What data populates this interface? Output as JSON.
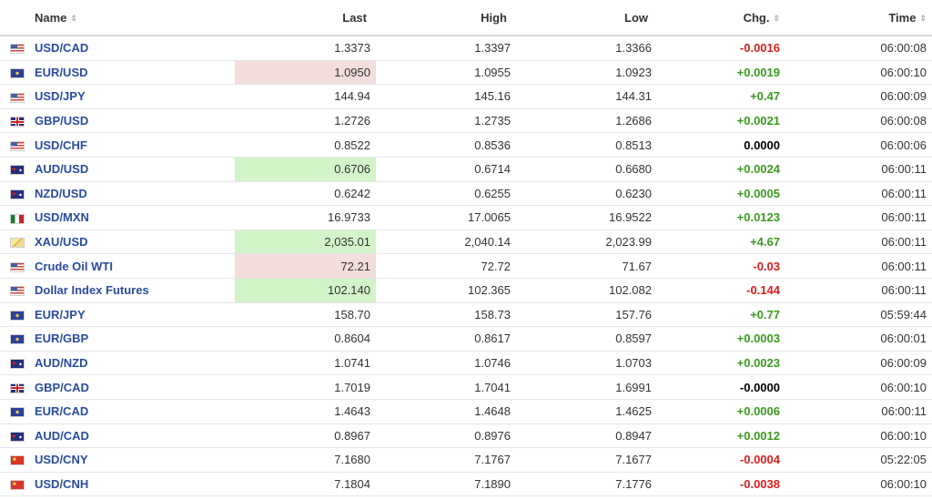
{
  "headers": {
    "name": "Name",
    "last": "Last",
    "high": "High",
    "low": "Low",
    "chg": "Chg.",
    "time": "Time",
    "sort_icon": "sort-arrows-icon"
  },
  "rows": [
    {
      "flag": "us",
      "name": "USD/CAD",
      "last": "1.3373",
      "high": "1.3397",
      "low": "1.3366",
      "chg": "-0.0016",
      "chg_sign": "neg",
      "time": "06:00:08",
      "last_highlight": ""
    },
    {
      "flag": "eu",
      "name": "EUR/USD",
      "last": "1.0950",
      "high": "1.0955",
      "low": "1.0923",
      "chg": "+0.0019",
      "chg_sign": "pos",
      "time": "06:00:10",
      "last_highlight": "red"
    },
    {
      "flag": "us",
      "name": "USD/JPY",
      "last": "144.94",
      "high": "145.16",
      "low": "144.31",
      "chg": "+0.47",
      "chg_sign": "pos",
      "time": "06:00:09",
      "last_highlight": ""
    },
    {
      "flag": "gb",
      "name": "GBP/USD",
      "last": "1.2726",
      "high": "1.2735",
      "low": "1.2686",
      "chg": "+0.0021",
      "chg_sign": "pos",
      "time": "06:00:08",
      "last_highlight": ""
    },
    {
      "flag": "us",
      "name": "USD/CHF",
      "last": "0.8522",
      "high": "0.8536",
      "low": "0.8513",
      "chg": "0.0000",
      "chg_sign": "zero",
      "time": "06:00:06",
      "last_highlight": ""
    },
    {
      "flag": "au",
      "name": "AUD/USD",
      "last": "0.6706",
      "high": "0.6714",
      "low": "0.6680",
      "chg": "+0.0024",
      "chg_sign": "pos",
      "time": "06:00:11",
      "last_highlight": "green"
    },
    {
      "flag": "au",
      "name": "NZD/USD",
      "last": "0.6242",
      "high": "0.6255",
      "low": "0.6230",
      "chg": "+0.0005",
      "chg_sign": "pos",
      "time": "06:00:11",
      "last_highlight": ""
    },
    {
      "flag": "mx",
      "name": "USD/MXN",
      "last": "16.9733",
      "high": "17.0065",
      "low": "16.9522",
      "chg": "+0.0123",
      "chg_sign": "pos",
      "time": "06:00:11",
      "last_highlight": ""
    },
    {
      "flag": "gold",
      "name": "XAU/USD",
      "last": "2,035.01",
      "high": "2,040.14",
      "low": "2,023.99",
      "chg": "+4.67",
      "chg_sign": "pos",
      "time": "06:00:11",
      "last_highlight": "green"
    },
    {
      "flag": "us",
      "name": "Crude Oil WTI",
      "last": "72.21",
      "high": "72.72",
      "low": "71.67",
      "chg": "-0.03",
      "chg_sign": "neg",
      "time": "06:00:11",
      "last_highlight": "red"
    },
    {
      "flag": "us",
      "name": "Dollar Index Futures",
      "last": "102.140",
      "high": "102.365",
      "low": "102.082",
      "chg": "-0.144",
      "chg_sign": "neg",
      "time": "06:00:11",
      "last_highlight": "green"
    },
    {
      "flag": "eu",
      "name": "EUR/JPY",
      "last": "158.70",
      "high": "158.73",
      "low": "157.76",
      "chg": "+0.77",
      "chg_sign": "pos",
      "time": "05:59:44",
      "last_highlight": ""
    },
    {
      "flag": "eu",
      "name": "EUR/GBP",
      "last": "0.8604",
      "high": "0.8617",
      "low": "0.8597",
      "chg": "+0.0003",
      "chg_sign": "pos",
      "time": "06:00:01",
      "last_highlight": ""
    },
    {
      "flag": "au",
      "name": "AUD/NZD",
      "last": "1.0741",
      "high": "1.0746",
      "low": "1.0703",
      "chg": "+0.0023",
      "chg_sign": "pos",
      "time": "06:00:09",
      "last_highlight": ""
    },
    {
      "flag": "gb",
      "name": "GBP/CAD",
      "last": "1.7019",
      "high": "1.7041",
      "low": "1.6991",
      "chg": "-0.0000",
      "chg_sign": "zero",
      "time": "06:00:10",
      "last_highlight": ""
    },
    {
      "flag": "eu",
      "name": "EUR/CAD",
      "last": "1.4643",
      "high": "1.4648",
      "low": "1.4625",
      "chg": "+0.0006",
      "chg_sign": "pos",
      "time": "06:00:11",
      "last_highlight": ""
    },
    {
      "flag": "au",
      "name": "AUD/CAD",
      "last": "0.8967",
      "high": "0.8976",
      "low": "0.8947",
      "chg": "+0.0012",
      "chg_sign": "pos",
      "time": "06:00:10",
      "last_highlight": ""
    },
    {
      "flag": "cn",
      "name": "USD/CNY",
      "last": "7.1680",
      "high": "7.1767",
      "low": "7.1677",
      "chg": "-0.0004",
      "chg_sign": "neg",
      "time": "05:22:05",
      "last_highlight": ""
    },
    {
      "flag": "cn",
      "name": "USD/CNH",
      "last": "7.1804",
      "high": "7.1890",
      "low": "7.1776",
      "chg": "-0.0038",
      "chg_sign": "neg",
      "time": "06:00:10",
      "last_highlight": ""
    }
  ],
  "colors": {
    "link": "#2a4c9e",
    "positive": "#3c9a1f",
    "negative": "#d91c1c",
    "highlight_up": "#d3f4c9",
    "highlight_down": "#f4dddd"
  }
}
